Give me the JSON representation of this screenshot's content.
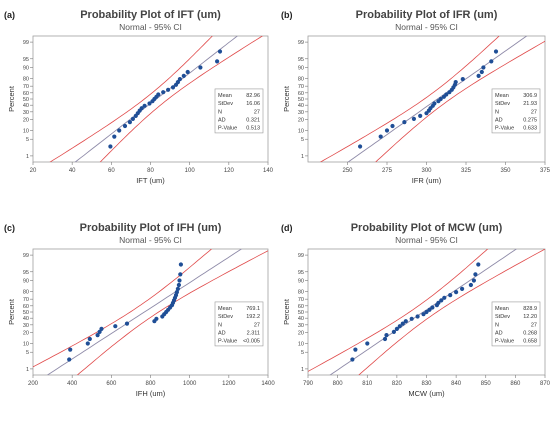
{
  "panel_labels": [
    "(a)",
    "(b)",
    "(c)",
    "(d)"
  ],
  "stats_labels": [
    "Mean",
    "StDev",
    "N",
    "AD",
    "P-Value"
  ],
  "colors": {
    "points": "#1f4e96",
    "fit_line": "#8e8aa8",
    "ci_band": "#e04a4a",
    "frame": "#a0a0a0",
    "title": "#444444"
  },
  "chart_data": [
    {
      "type": "scatter",
      "title": "Probability Plot of IFT (um)",
      "subtitle": "Normal - 95% CI",
      "xlabel": "IFT (um)",
      "ylabel": "Percent",
      "xlim": [
        20,
        140
      ],
      "x_ticks": [
        20,
        40,
        60,
        80,
        100,
        120,
        140
      ],
      "y_ticks": [
        1,
        5,
        10,
        20,
        30,
        40,
        50,
        60,
        70,
        80,
        90,
        95,
        99
      ],
      "stats": [
        "82.96",
        "16.06",
        "27",
        "0.321",
        "0.513"
      ],
      "mean": 82.96,
      "sd": 16.06,
      "points": [
        [
          59.5,
          2.6
        ],
        [
          61.5,
          6.2
        ],
        [
          64,
          9.9
        ],
        [
          67,
          13.5
        ],
        [
          69.5,
          17.2
        ],
        [
          71,
          20.8
        ],
        [
          72.5,
          24.5
        ],
        [
          73.5,
          28.1
        ],
        [
          74.5,
          31.8
        ],
        [
          75.5,
          35.4
        ],
        [
          77,
          39.1
        ],
        [
          79.5,
          42.7
        ],
        [
          81,
          46.4
        ],
        [
          82,
          50.0
        ],
        [
          83,
          53.6
        ],
        [
          84,
          57.3
        ],
        [
          86.5,
          60.9
        ],
        [
          89,
          64.6
        ],
        [
          91.5,
          68.2
        ],
        [
          93,
          71.9
        ],
        [
          94,
          75.5
        ],
        [
          95,
          79.2
        ],
        [
          97,
          82.8
        ],
        [
          99,
          86.5
        ],
        [
          105.5,
          90.1
        ],
        [
          114,
          93.8
        ],
        [
          115.5,
          97.4
        ]
      ]
    },
    {
      "type": "scatter",
      "title": "Probability Plot of IFR (um)",
      "subtitle": "Normal - 95% CI",
      "xlabel": "IFR (um)",
      "ylabel": "Percent",
      "xlim": [
        225,
        375
      ],
      "x_ticks": [
        250,
        275,
        300,
        325,
        350,
        375
      ],
      "y_ticks": [
        1,
        5,
        10,
        20,
        30,
        40,
        50,
        60,
        70,
        80,
        90,
        95,
        99
      ],
      "stats": [
        "306.9",
        "21.93",
        "27",
        "0.275",
        "0.633"
      ],
      "mean": 306.9,
      "sd": 21.93,
      "points": [
        [
          258,
          2.6
        ],
        [
          271,
          6.2
        ],
        [
          275,
          9.9
        ],
        [
          278.5,
          13.5
        ],
        [
          286,
          17.2
        ],
        [
          292,
          20.8
        ],
        [
          296,
          24.5
        ],
        [
          300,
          28.1
        ],
        [
          301.5,
          31.8
        ],
        [
          302.5,
          35.4
        ],
        [
          304,
          39.1
        ],
        [
          305,
          42.7
        ],
        [
          307.5,
          46.4
        ],
        [
          309,
          50.0
        ],
        [
          311,
          53.6
        ],
        [
          312.5,
          57.3
        ],
        [
          314.5,
          60.9
        ],
        [
          316,
          64.6
        ],
        [
          317,
          68.2
        ],
        [
          318,
          71.9
        ],
        [
          318.5,
          75.5
        ],
        [
          323,
          79.2
        ],
        [
          333,
          82.8
        ],
        [
          335,
          86.5
        ],
        [
          336,
          90.1
        ],
        [
          341,
          93.8
        ],
        [
          344,
          97.4
        ]
      ]
    },
    {
      "type": "scatter",
      "title": "Probability Plot of IFH (um)",
      "subtitle": "Normal - 95% CI",
      "xlabel": "IFH (um)",
      "ylabel": "Percent",
      "xlim": [
        200,
        1400
      ],
      "x_ticks": [
        200,
        400,
        600,
        800,
        1000,
        1200,
        1400
      ],
      "y_ticks": [
        1,
        5,
        10,
        20,
        30,
        40,
        50,
        60,
        70,
        80,
        90,
        95,
        99
      ],
      "stats": [
        "769.1",
        "192.2",
        "27",
        "2.311",
        "<0.005"
      ],
      "mean": 769.1,
      "sd": 192.2,
      "points": [
        [
          385,
          2.6
        ],
        [
          390,
          6.2
        ],
        [
          480,
          9.9
        ],
        [
          490,
          13.5
        ],
        [
          530,
          17.2
        ],
        [
          540,
          20.8
        ],
        [
          550,
          24.5
        ],
        [
          620,
          28.1
        ],
        [
          680,
          31.8
        ],
        [
          820,
          35.4
        ],
        [
          830,
          39.1
        ],
        [
          860,
          42.7
        ],
        [
          870,
          46.4
        ],
        [
          880,
          50.0
        ],
        [
          890,
          53.6
        ],
        [
          900,
          57.3
        ],
        [
          910,
          60.9
        ],
        [
          915,
          64.6
        ],
        [
          920,
          68.2
        ],
        [
          925,
          71.9
        ],
        [
          930,
          75.5
        ],
        [
          935,
          79.2
        ],
        [
          940,
          82.8
        ],
        [
          945,
          86.5
        ],
        [
          948,
          90.1
        ],
        [
          952,
          93.8
        ],
        [
          955,
          97.4
        ]
      ]
    },
    {
      "type": "scatter",
      "title": "Probability Plot of MCW (um)",
      "subtitle": "Normal - 95% CI",
      "xlabel": "MCW (um)",
      "ylabel": "Percent",
      "xlim": [
        790,
        870
      ],
      "x_ticks": [
        790,
        800,
        810,
        820,
        830,
        840,
        850,
        860,
        870
      ],
      "y_ticks": [
        1,
        5,
        10,
        20,
        30,
        40,
        50,
        60,
        70,
        80,
        90,
        95,
        99
      ],
      "stats": [
        "828.9",
        "12.20",
        "27",
        "0.268",
        "0.658"
      ],
      "mean": 828.9,
      "sd": 12.2,
      "points": [
        [
          805,
          2.6
        ],
        [
          806,
          6.2
        ],
        [
          810,
          9.9
        ],
        [
          816,
          13.5
        ],
        [
          816.5,
          17.2
        ],
        [
          819,
          20.8
        ],
        [
          820,
          24.5
        ],
        [
          821,
          28.1
        ],
        [
          822,
          31.8
        ],
        [
          823,
          35.4
        ],
        [
          825,
          39.1
        ],
        [
          827,
          42.7
        ],
        [
          829,
          46.4
        ],
        [
          830,
          50.0
        ],
        [
          831,
          53.6
        ],
        [
          832,
          57.3
        ],
        [
          833.5,
          60.9
        ],
        [
          834,
          64.6
        ],
        [
          835,
          68.2
        ],
        [
          836,
          71.9
        ],
        [
          838,
          75.5
        ],
        [
          840,
          79.2
        ],
        [
          842,
          82.8
        ],
        [
          845,
          86.5
        ],
        [
          846,
          90.1
        ],
        [
          846.5,
          93.8
        ],
        [
          847.5,
          97.4
        ]
      ]
    }
  ]
}
